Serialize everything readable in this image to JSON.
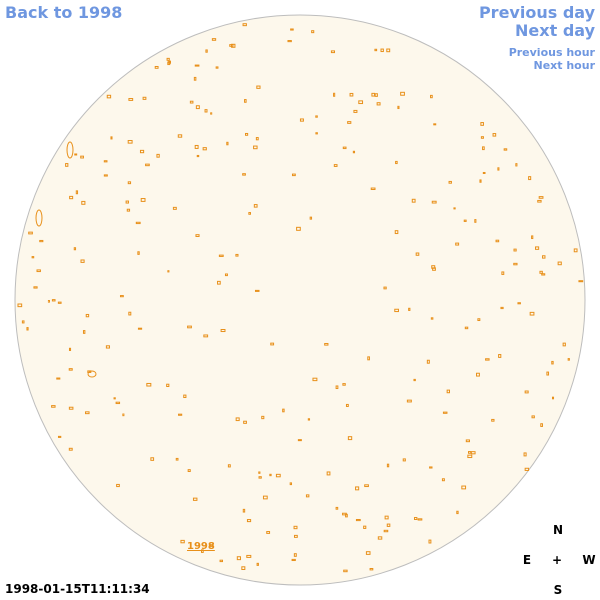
{
  "links": {
    "back": "Back to 1998",
    "previous_day": "Previous day",
    "next_day": "Next day",
    "previous_hour": "Previous hour",
    "next_hour": "Next hour"
  },
  "timestamp": "1998-01-15T11:11:34",
  "map_label": "1998",
  "compass": {
    "north": "N",
    "east": "E",
    "center": "+",
    "west": "W",
    "south": "S"
  }
}
